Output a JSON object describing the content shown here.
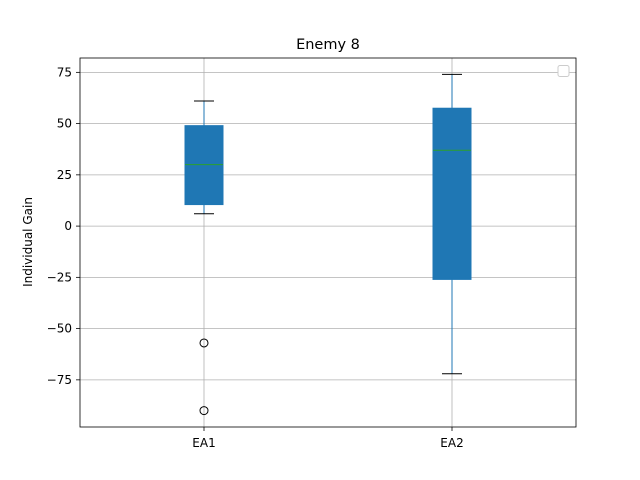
{
  "chart_data": {
    "type": "box",
    "title": "Enemy 8",
    "xlabel": "",
    "ylabel": "Individual Gain",
    "categories": [
      "EA1",
      "EA2"
    ],
    "ylim": [
      -98,
      82
    ],
    "yticks": [
      75,
      50,
      25,
      0,
      -25,
      -50,
      -75
    ],
    "ytick_labels": [
      "75",
      "50",
      "25",
      "0",
      "−25",
      "−50",
      "−75"
    ],
    "grid": true,
    "legend": "top-right (empty)",
    "boxes": [
      {
        "category": "EA1",
        "whisker_low": 6,
        "q1": 10.5,
        "median": 30,
        "q3": 49,
        "whisker_high": 61,
        "outliers": [
          -57,
          -90
        ]
      },
      {
        "category": "EA2",
        "whisker_low": -72,
        "q1": -26,
        "median": 37,
        "q3": 57.5,
        "whisker_high": 74,
        "outliers": []
      }
    ],
    "colors": {
      "box_fill": "#1f77b4",
      "box_edge": "#1f77b4",
      "median": "#2ca02c",
      "whisker": "#1f77b4",
      "cap": "#000000",
      "outlier": "#000000",
      "grid": "#b0b0b0"
    }
  }
}
